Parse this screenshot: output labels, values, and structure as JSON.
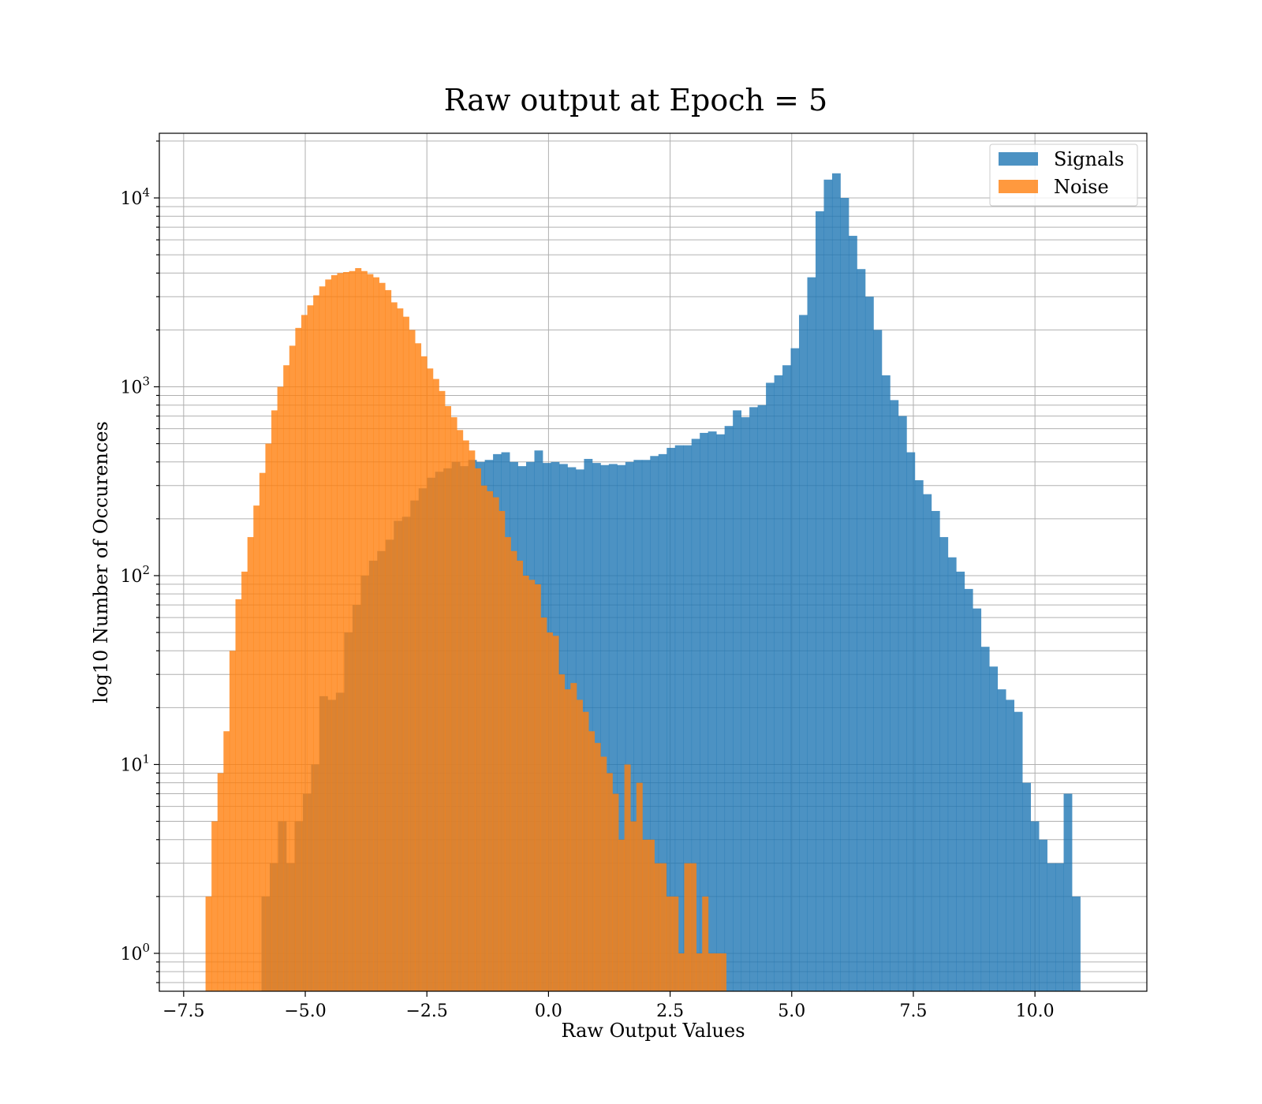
{
  "chart_data": {
    "type": "bar",
    "title": "Raw output at Epoch = 5",
    "xlabel": "Raw Output Values",
    "ylabel": "log10 Number of Occurences",
    "xlim": [
      -8.0,
      12.3
    ],
    "ylim": [
      0.63,
      22000
    ],
    "yscale": "log",
    "grid": "on (major and minor)",
    "legend_position": "top-right",
    "x_ticks": [
      -7.5,
      -5.0,
      -2.5,
      0.0,
      2.5,
      5.0,
      7.5,
      10.0
    ],
    "x_tick_labels": [
      "−7.5",
      "−5.0",
      "−2.5",
      "0.0",
      "2.5",
      "5.0",
      "7.5",
      "10.0"
    ],
    "y_ticks": [
      {
        "value": 1,
        "base": "10",
        "exp": "0"
      },
      {
        "value": 10,
        "base": "10",
        "exp": "1"
      },
      {
        "value": 100,
        "base": "10",
        "exp": "2"
      },
      {
        "value": 1000,
        "base": "10",
        "exp": "3"
      },
      {
        "value": 10000,
        "base": "10",
        "exp": "4"
      }
    ],
    "series": [
      {
        "name": "Signals",
        "color": "#1f77b4",
        "opacity": 0.8,
        "bin_start": -5.9,
        "bin_width": 0.17,
        "counts": [
          2,
          3,
          5,
          3,
          5,
          7,
          10,
          23,
          22,
          24,
          50,
          70,
          100,
          120,
          135,
          155,
          195,
          205,
          250,
          290,
          330,
          355,
          370,
          400,
          380,
          410,
          400,
          410,
          440,
          450,
          400,
          380,
          400,
          460,
          395,
          400,
          390,
          375,
          365,
          415,
          395,
          385,
          390,
          385,
          400,
          410,
          410,
          430,
          440,
          475,
          490,
          490,
          530,
          570,
          580,
          560,
          620,
          750,
          690,
          780,
          800,
          1050,
          1150,
          1300,
          1600,
          2400,
          3800,
          8500,
          12500,
          13500,
          10000,
          6300,
          4200,
          3000,
          2000,
          1150,
          850,
          700,
          450,
          320,
          270,
          220,
          160,
          125,
          105,
          85,
          67,
          42,
          33,
          25,
          22,
          19,
          8,
          5,
          4,
          3,
          3,
          7,
          2
        ]
      },
      {
        "name": "Noise",
        "color": "#ff7f0e",
        "opacity": 0.8,
        "bin_start": -7.05,
        "bin_width": 0.123,
        "counts": [
          2,
          5,
          9,
          15,
          40,
          75,
          105,
          160,
          235,
          350,
          500,
          750,
          1000,
          1300,
          1650,
          2050,
          2400,
          2700,
          3050,
          3400,
          3700,
          3900,
          4000,
          4050,
          4100,
          4250,
          4100,
          3950,
          3800,
          3550,
          3250,
          2800,
          2600,
          2350,
          2000,
          1700,
          1450,
          1250,
          1100,
          950,
          790,
          690,
          590,
          520,
          460,
          370,
          300,
          280,
          260,
          220,
          160,
          135,
          120,
          100,
          95,
          90,
          60,
          50,
          48,
          30,
          25,
          27,
          22,
          19,
          15,
          13,
          11,
          9,
          7,
          4,
          10,
          5,
          8,
          4,
          4,
          3,
          3,
          2,
          2,
          1,
          3,
          3,
          1,
          2,
          1,
          1,
          1
        ]
      }
    ],
    "legend": [
      {
        "label": "Signals",
        "color": "#1f77b4"
      },
      {
        "label": "Noise",
        "color": "#ff7f0e"
      }
    ]
  }
}
